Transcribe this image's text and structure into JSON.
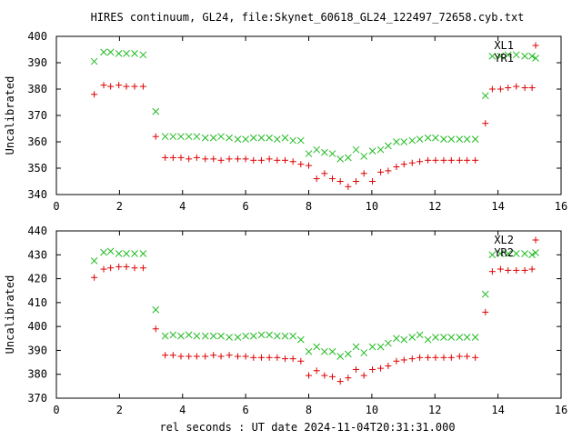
{
  "figure": {
    "title": "HIRES continuum, GL24, file:Skynet_60618_GL24_122497_72658.cyb.txt",
    "xlabel": "rel seconds : UT date 2024-11-04T20:31:31.000"
  },
  "colors": {
    "red": "#dd0000",
    "green": "#22bb22",
    "axis": "#000000"
  },
  "chart_data": [
    {
      "type": "scatter",
      "ylabel": "Uncalibrated",
      "xlim": [
        0,
        16
      ],
      "ylim": [
        340,
        400
      ],
      "xticks": [
        0,
        2,
        4,
        6,
        8,
        10,
        12,
        14,
        16
      ],
      "yticks": [
        340,
        350,
        360,
        370,
        380,
        390,
        400
      ],
      "legend_position": "top-right",
      "x": [
        1.2,
        1.5,
        1.72,
        1.98,
        2.22,
        2.48,
        2.75,
        3.15,
        3.45,
        3.7,
        3.95,
        4.2,
        4.45,
        4.72,
        4.98,
        5.22,
        5.48,
        5.75,
        6.0,
        6.25,
        6.5,
        6.75,
        7.0,
        7.25,
        7.5,
        7.75,
        8.0,
        8.25,
        8.5,
        8.75,
        9.0,
        9.25,
        9.5,
        9.75,
        10.02,
        10.28,
        10.52,
        10.78,
        11.02,
        11.28,
        11.52,
        11.78,
        12.02,
        12.28,
        12.52,
        12.78,
        13.02,
        13.28,
        13.6,
        13.82,
        14.08,
        14.32,
        14.58,
        14.85,
        15.08
      ],
      "series": [
        {
          "name": "XL1",
          "marker": "plus",
          "color": "#dd0000",
          "values": [
            378,
            381.5,
            381,
            381.5,
            381,
            381,
            381,
            362,
            354,
            354,
            354,
            353.5,
            354,
            353.5,
            353.5,
            353,
            353.5,
            353.5,
            353.5,
            353,
            353,
            353.5,
            353,
            353,
            352.5,
            351.5,
            351,
            346,
            348,
            346,
            345,
            343,
            345,
            348,
            345,
            348.5,
            349,
            350.5,
            351.5,
            352,
            352.5,
            353,
            353,
            353,
            353,
            353,
            353,
            353,
            367,
            380,
            380,
            380.5,
            381,
            380.5,
            380.5
          ]
        },
        {
          "name": "YR1",
          "marker": "cross",
          "color": "#22bb22",
          "values": [
            390.5,
            394,
            394,
            393.5,
            393.5,
            393.5,
            393,
            371.5,
            362,
            362,
            362,
            362,
            362,
            361.5,
            361.5,
            362,
            361.5,
            361,
            361,
            361.5,
            361.5,
            361.5,
            361,
            361.5,
            360.5,
            360.5,
            355.5,
            357,
            356,
            355.5,
            353.5,
            354,
            357,
            354.5,
            356.5,
            357,
            358.5,
            360,
            360,
            360.5,
            361,
            361.5,
            361.5,
            361,
            361,
            361,
            361,
            361,
            377.5,
            392.5,
            392.5,
            393,
            393,
            392.5,
            392.5
          ]
        }
      ]
    },
    {
      "type": "scatter",
      "ylabel": "Uncalibrated",
      "xlim": [
        0,
        16
      ],
      "ylim": [
        370,
        440
      ],
      "xticks": [
        0,
        2,
        4,
        6,
        8,
        10,
        12,
        14,
        16
      ],
      "yticks": [
        370,
        380,
        390,
        400,
        410,
        420,
        430,
        440
      ],
      "legend_position": "top-right",
      "x": [
        1.2,
        1.5,
        1.72,
        1.98,
        2.22,
        2.48,
        2.75,
        3.15,
        3.45,
        3.7,
        3.95,
        4.2,
        4.45,
        4.72,
        4.98,
        5.22,
        5.48,
        5.75,
        6.0,
        6.25,
        6.5,
        6.75,
        7.0,
        7.25,
        7.5,
        7.75,
        8.0,
        8.25,
        8.5,
        8.75,
        9.0,
        9.25,
        9.5,
        9.75,
        10.02,
        10.28,
        10.52,
        10.78,
        11.02,
        11.28,
        11.52,
        11.78,
        12.02,
        12.28,
        12.52,
        12.78,
        13.02,
        13.28,
        13.6,
        13.82,
        14.08,
        14.32,
        14.58,
        14.85,
        15.08
      ],
      "series": [
        {
          "name": "XL2",
          "marker": "plus",
          "color": "#dd0000",
          "values": [
            420.5,
            424,
            424.5,
            425,
            425,
            424.5,
            424.5,
            399,
            388,
            388,
            387.5,
            387.5,
            387.5,
            387.5,
            388,
            387.5,
            388,
            387.5,
            387.5,
            387,
            387,
            387,
            387,
            386.5,
            386.5,
            385.5,
            379.5,
            381.5,
            379.5,
            379,
            377,
            378.5,
            382,
            379.5,
            382,
            382.5,
            383.5,
            385.5,
            386,
            386.5,
            387,
            387,
            387,
            387,
            387,
            387.5,
            387.5,
            387,
            406,
            423,
            424,
            423.5,
            423.5,
            423.5,
            424
          ]
        },
        {
          "name": "YR2",
          "marker": "cross",
          "color": "#22bb22",
          "values": [
            427.5,
            431,
            431.5,
            430.5,
            430.5,
            430.5,
            430.5,
            407,
            396,
            396.5,
            396,
            396.5,
            396,
            396,
            396,
            396,
            395.5,
            395.5,
            396,
            396,
            396.5,
            396.5,
            396,
            396,
            396,
            394.5,
            389.5,
            391.5,
            389.5,
            389.5,
            387.5,
            388.5,
            391.5,
            389,
            391.5,
            391.5,
            393,
            395,
            394.5,
            395.5,
            396.5,
            394.5,
            395.5,
            395.5,
            395.5,
            395.5,
            395.5,
            395.5,
            413.5,
            430,
            430.5,
            430.5,
            430.5,
            430.5,
            430
          ]
        }
      ]
    }
  ]
}
